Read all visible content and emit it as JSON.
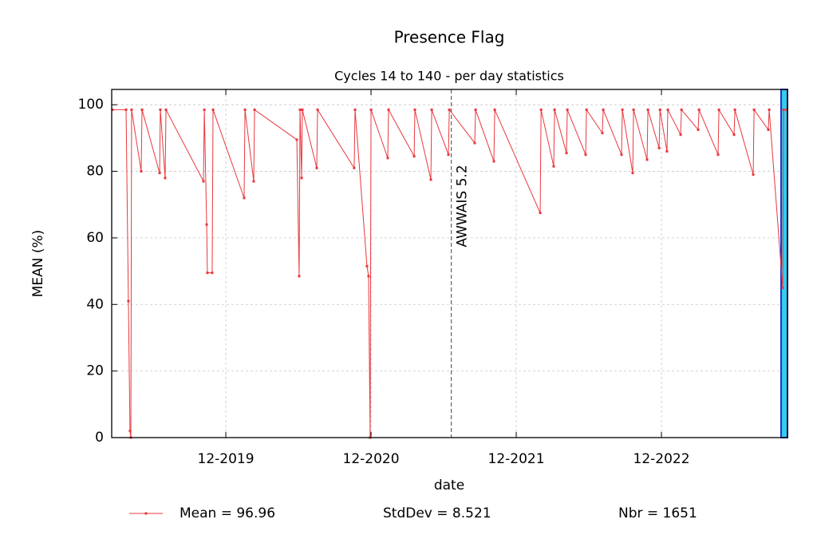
{
  "chart_data": {
    "type": "line",
    "title": "Presence Flag",
    "subtitle": "Cycles 14 to 140 - per day statistics",
    "x_label": "date",
    "y_label": "MEAN (%)",
    "x": [
      2019.136,
      2019.23,
      2019.246,
      2019.257,
      2019.263,
      2019.268,
      2019.334,
      2019.34,
      2019.461,
      2019.466,
      2019.499,
      2019.505,
      2019.763,
      2019.769,
      2019.785,
      2019.79,
      2019.823,
      2019.829,
      2020.043,
      2020.049,
      2020.109,
      2020.115,
      2020.406,
      2020.422,
      2020.428,
      2020.439,
      2020.444,
      2020.543,
      2020.549,
      2020.801,
      2020.807,
      2020.889,
      2020.9,
      2020.911,
      2020.917,
      2021.032,
      2021.038,
      2021.214,
      2021.219,
      2021.329,
      2021.335,
      2021.45,
      2021.456,
      2021.631,
      2021.637,
      2021.763,
      2021.769,
      2022.082,
      2022.088,
      2022.175,
      2022.181,
      2022.263,
      2022.269,
      2022.395,
      2022.401,
      2022.51,
      2022.516,
      2022.642,
      2022.648,
      2022.719,
      2022.725,
      2022.818,
      2022.824,
      2022.901,
      2022.907,
      2022.955,
      2022.961,
      2023.049,
      2023.055,
      2023.17,
      2023.176,
      2023.307,
      2023.313,
      2023.417,
      2023.423,
      2023.549,
      2023.555,
      2023.653,
      2023.659,
      2023.752,
      2023.758,
      2023.78
    ],
    "series": [
      {
        "name": "Mean = 96.96",
        "color": "#e8383d",
        "values": [
          98.5,
          98.5,
          41,
          2,
          0,
          98.5,
          80,
          98.5,
          79.5,
          98.5,
          78,
          98.5,
          77,
          98.5,
          64,
          49.5,
          49.5,
          98.5,
          72,
          98.5,
          77,
          98.5,
          89.5,
          48.5,
          98.5,
          78,
          98.5,
          81,
          98.5,
          81,
          98.5,
          51.5,
          48.5,
          0,
          98.5,
          84,
          98.5,
          84.5,
          98.5,
          77.5,
          98.5,
          85,
          98.5,
          88.5,
          98.5,
          83,
          98.5,
          67.5,
          98.5,
          81.5,
          98.5,
          85.5,
          98.5,
          85,
          98.5,
          91.5,
          98.5,
          85,
          98.5,
          79.5,
          98.5,
          83.5,
          98.5,
          87,
          98.5,
          86,
          98.5,
          91,
          98.5,
          92.5,
          98.5,
          85,
          98.5,
          91,
          98.5,
          79,
          98.5,
          92.5,
          98.5,
          45,
          98.5,
          98.5
        ]
      }
    ],
    "stats": [
      "StdDev = 8.521",
      "Nbr = 1651"
    ],
    "xlim": [
      2019.131,
      2023.785
    ],
    "xticks": [
      {
        "value": 2019.917,
        "label": "12-2019"
      },
      {
        "value": 2020.917,
        "label": "12-2020"
      },
      {
        "value": 2021.917,
        "label": "12-2021"
      },
      {
        "value": 2022.917,
        "label": "12-2022"
      }
    ],
    "ylim": [
      0,
      104.6
    ],
    "yticks": [
      0,
      20,
      40,
      60,
      80,
      100
    ],
    "grid": true,
    "vline": {
      "x": 2021.47,
      "label": "AWWAIS 5.2"
    },
    "shaded_region": {
      "x": [
        2023.741,
        2023.785
      ],
      "color": "#33ccee",
      "edge_color": "#2233cc"
    }
  }
}
